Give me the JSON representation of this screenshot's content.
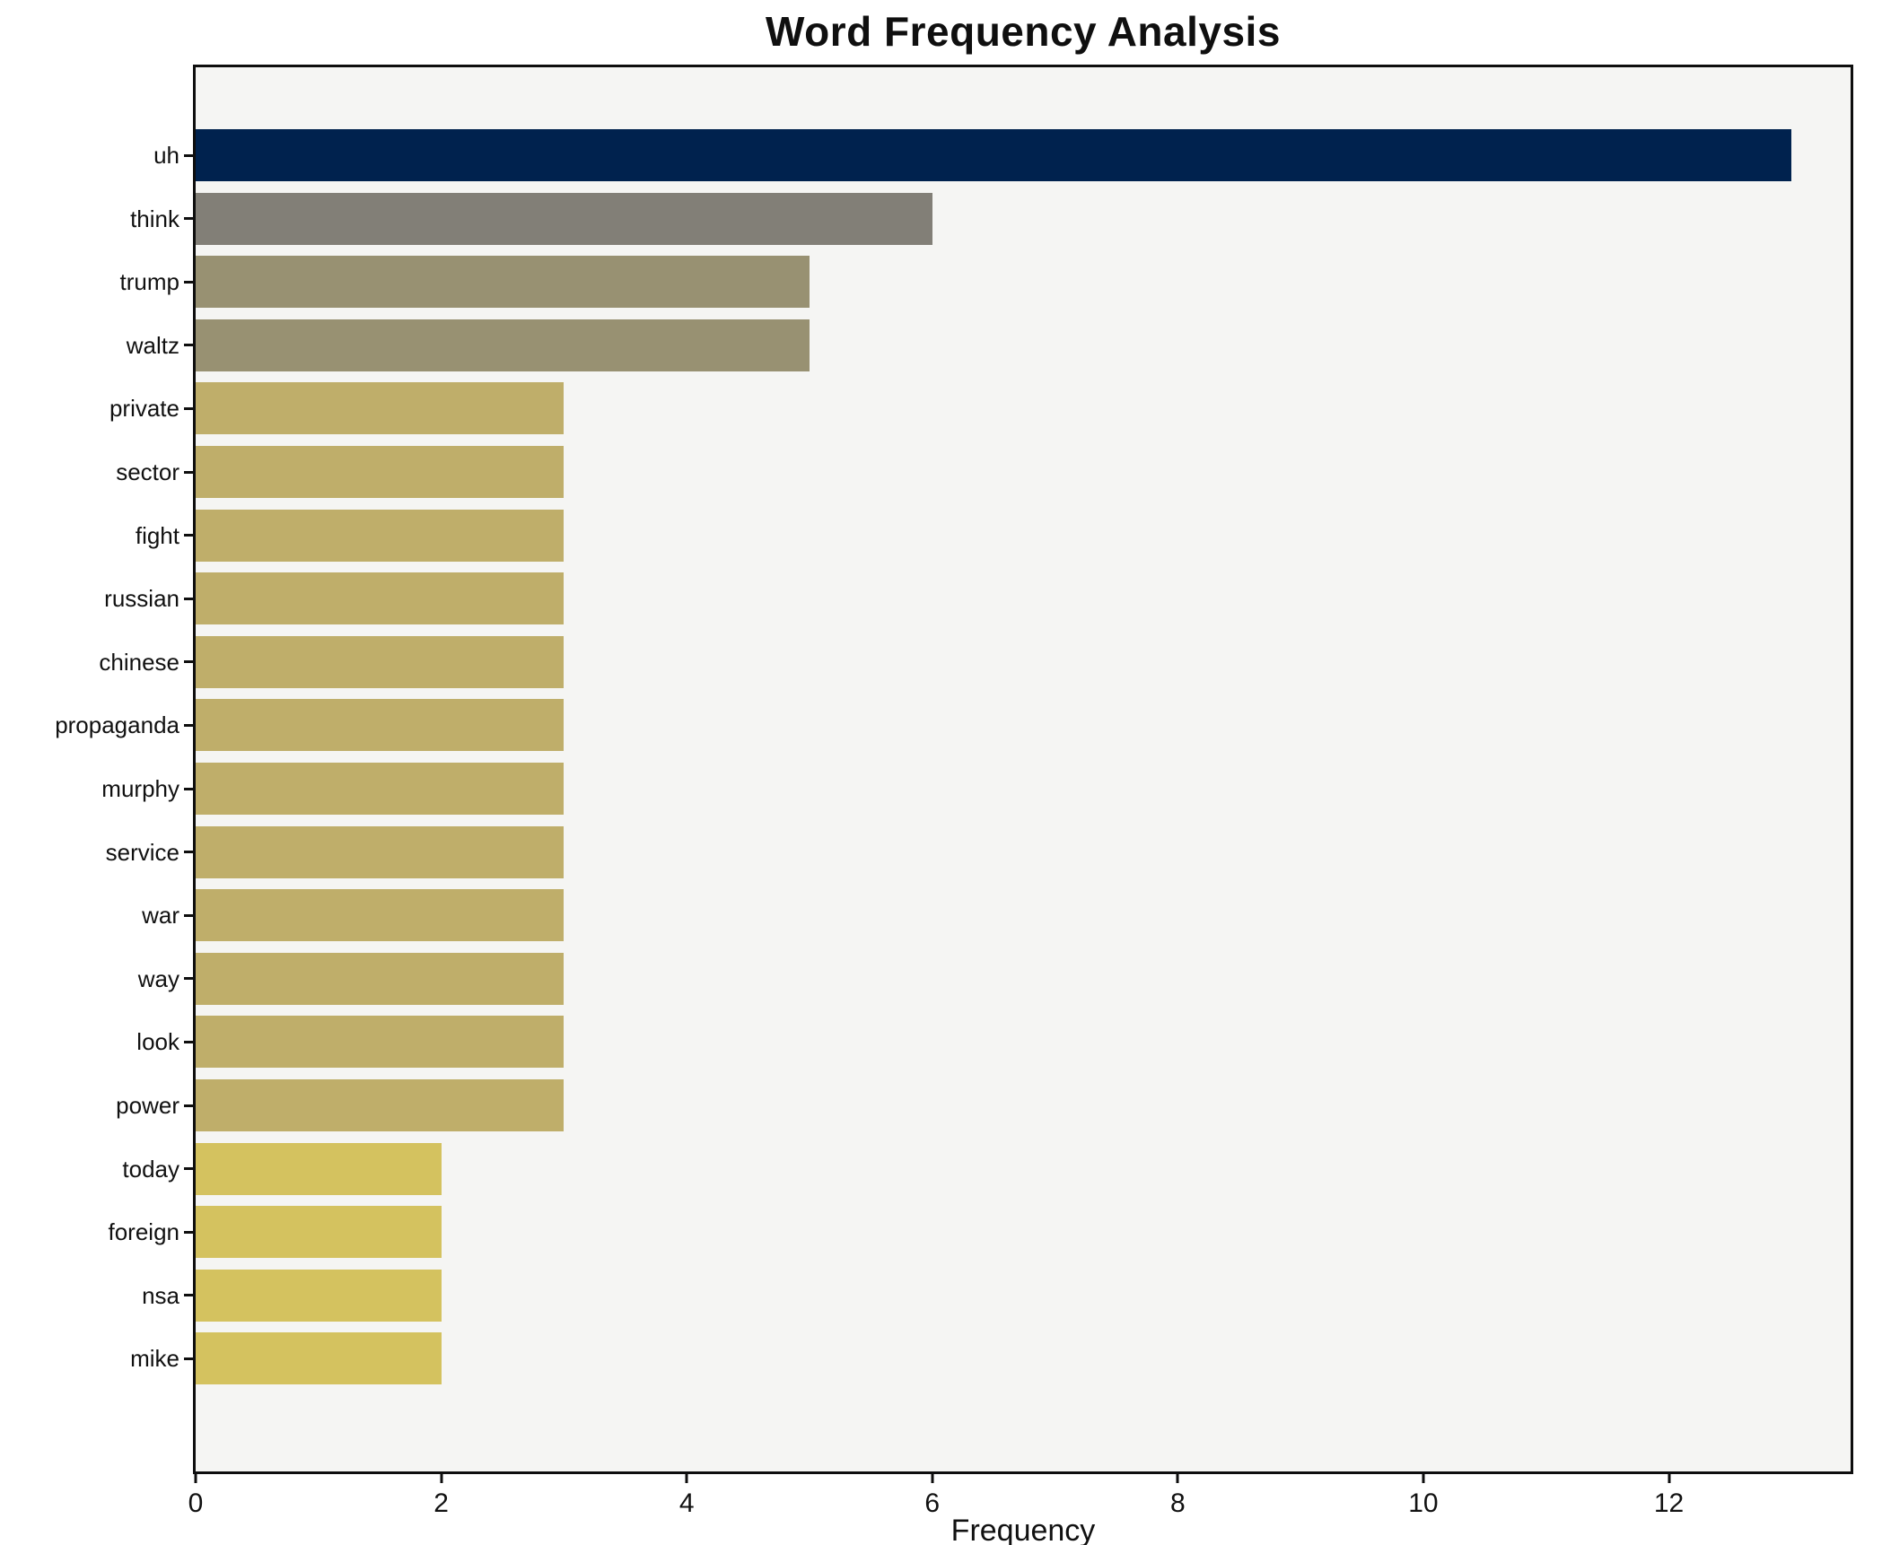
{
  "chart_data": {
    "type": "bar",
    "orientation": "horizontal",
    "title": "Word Frequency Analysis",
    "xlabel": "Frequency",
    "ylabel": "",
    "categories": [
      "uh",
      "think",
      "trump",
      "waltz",
      "private",
      "sector",
      "fight",
      "russian",
      "chinese",
      "propaganda",
      "murphy",
      "service",
      "war",
      "way",
      "look",
      "power",
      "today",
      "foreign",
      "nsa",
      "mike"
    ],
    "values": [
      13,
      6,
      5,
      5,
      3,
      3,
      3,
      3,
      3,
      3,
      3,
      3,
      3,
      3,
      3,
      3,
      2,
      2,
      2,
      2
    ],
    "bar_colors": [
      "#00224e",
      "#827f77",
      "#989172",
      "#989172",
      "#bfae6a",
      "#bfae6a",
      "#bfae6a",
      "#bfae6a",
      "#bfae6a",
      "#bfae6a",
      "#bfae6a",
      "#bfae6a",
      "#bfae6a",
      "#bfae6a",
      "#bfae6a",
      "#bfae6a",
      "#d4c25f",
      "#d4c25f",
      "#d4c25f",
      "#d4c25f"
    ],
    "xlim": [
      0,
      13.48
    ],
    "x_ticks": [
      0,
      2,
      4,
      6,
      8,
      10,
      12
    ],
    "grid": false,
    "legend": "none",
    "plot_background": "#f5f5f3",
    "figure_background": "#ffffff",
    "spine_color": "#0e0e0e"
  }
}
